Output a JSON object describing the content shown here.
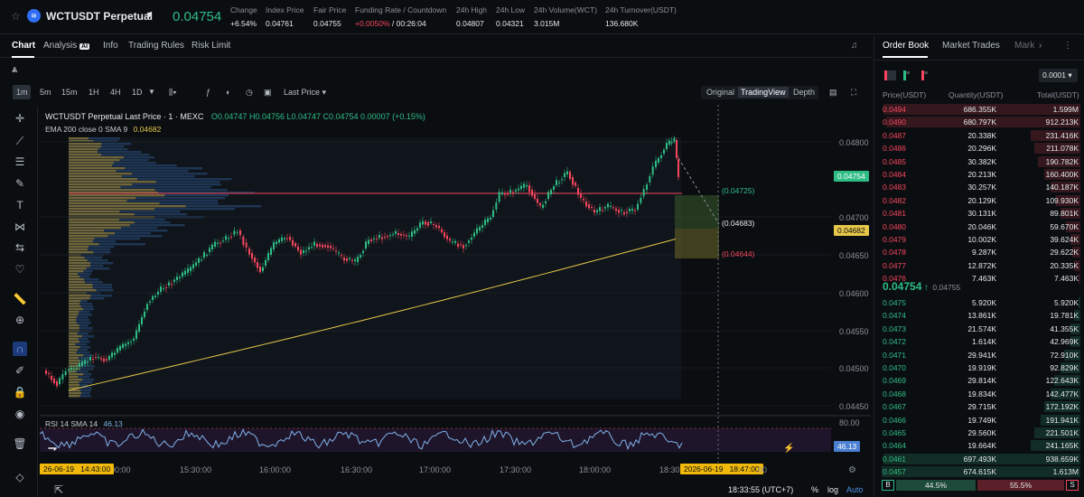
{
  "header": {
    "symbol": "WCTUSDT Perpetual",
    "price": "0.04754",
    "stats": [
      {
        "label": "Change",
        "value": "+6.54%",
        "color": "#2ebd85"
      },
      {
        "label": "Index Price",
        "value": "0.04761"
      },
      {
        "label": "Fair Price",
        "value": "0.04755"
      },
      {
        "label": "Funding Rate / Countdown",
        "value": "+0.0050%",
        "value2": "/ 00:26:04"
      },
      {
        "label": "24h High",
        "value": "0.04807"
      },
      {
        "label": "24h Low",
        "value": "0.04321"
      },
      {
        "label": "24h Volume(WCT)",
        "value": "3.015M"
      },
      {
        "label": "24h Turnover(USDT)",
        "value": "136.680K"
      }
    ]
  },
  "tabs": {
    "chart": "Chart",
    "analysis": "Analysis",
    "analysis_badge": "AI",
    "info": "Info",
    "rules": "Trading Rules",
    "risk": "Risk Limit"
  },
  "toolbar": {
    "tf": [
      "1m",
      "5m",
      "15m",
      "1H",
      "4H",
      "1D"
    ],
    "last_price": "Last Price",
    "views": [
      "Original",
      "TradingView",
      "Depth"
    ]
  },
  "legend": {
    "title": "WCTUSDT Perpetual Last Price · 1 · MEXC",
    "ohlc": "O0.04747 H0.04756 L0.04747 C0.04754 0.00007 (+0.15%)",
    "ema": "EMA 200 close 0 SMA 9",
    "ema_val": "0.04682",
    "rsi": "RSI 14 SMA 14",
    "rsi_val": "46.13"
  },
  "price_axis": [
    "0.04800",
    "0.04750",
    "0.04700",
    "0.04650",
    "0.04600",
    "0.04550",
    "0.04500",
    "0.04450"
  ],
  "rsi_axis": [
    "80.00"
  ],
  "last_price_tag": "0.04754",
  "ema_tag": "0.04682",
  "rsi_tag": "46.13",
  "position_labels": [
    "(0.04725)",
    "(0.04683)",
    "(0.04644)"
  ],
  "time_axis": [
    "15:30:00",
    "16:00:00",
    "16:30:00",
    "17:00:00",
    "17:30:00",
    "18:00:00",
    "18:30"
  ],
  "time_axis_first": "00:00",
  "time_left_tag": "26-06-19   14:43:00",
  "time_right_tag": "2026-06-19   18:47:00",
  "time_right_after": "00",
  "footer": {
    "clock": "18:33:55 (UTC+7)",
    "pct": "%",
    "log": "log",
    "auto": "Auto"
  },
  "orderbook": {
    "tabs": [
      "Order Book",
      "Market Trades",
      "Mark"
    ],
    "precision": "0.0001",
    "headers": [
      "Price(USDT)",
      "Quantity(USDT)",
      "Total(USDT)"
    ],
    "asks": [
      [
        "0.0494",
        "686.355K",
        "1.599M",
        0.98
      ],
      [
        "0.0490",
        "680.797K",
        "912.213K",
        0.97
      ],
      [
        "0.0487",
        "20.338K",
        "231.416K",
        0.25
      ],
      [
        "0.0486",
        "20.296K",
        "211.078K",
        0.23
      ],
      [
        "0.0485",
        "30.382K",
        "190.782K",
        0.21
      ],
      [
        "0.0484",
        "20.213K",
        "160.400K",
        0.18
      ],
      [
        "0.0483",
        "30.257K",
        "140.187K",
        0.15
      ],
      [
        "0.0482",
        "20.129K",
        "109.930K",
        0.12
      ],
      [
        "0.0481",
        "30.131K",
        "89.801K",
        0.1
      ],
      [
        "0.0480",
        "20.046K",
        "59.670K",
        0.07
      ],
      [
        "0.0479",
        "10.002K",
        "39.624K",
        0.05
      ],
      [
        "0.0478",
        "9.287K",
        "29.622K",
        0.04
      ],
      [
        "0.0477",
        "12.872K",
        "20.335K",
        0.03
      ],
      [
        "0.0476",
        "7.463K",
        "7.463K",
        0.01
      ]
    ],
    "mid_price": "0.04754",
    "mid_arrow": "↑",
    "mid_mark": "0.04755",
    "bids": [
      [
        "0.0475",
        "5.920K",
        "5.920K",
        0.01
      ],
      [
        "0.0474",
        "13.861K",
        "19.781K",
        0.03
      ],
      [
        "0.0473",
        "21.574K",
        "41.355K",
        0.05
      ],
      [
        "0.0472",
        "1.614K",
        "42.969K",
        0.05
      ],
      [
        "0.0471",
        "29.941K",
        "72.910K",
        0.08
      ],
      [
        "0.0470",
        "19.919K",
        "92.829K",
        0.1
      ],
      [
        "0.0469",
        "29.814K",
        "122.643K",
        0.13
      ],
      [
        "0.0468",
        "19.834K",
        "142.477K",
        0.15
      ],
      [
        "0.0467",
        "29.715K",
        "172.192K",
        0.18
      ],
      [
        "0.0466",
        "19.749K",
        "191.941K",
        0.2
      ],
      [
        "0.0465",
        "29.560K",
        "221.501K",
        0.23
      ],
      [
        "0.0464",
        "19.664K",
        "241.165K",
        0.25
      ],
      [
        "0.0461",
        "697.493K",
        "938.659K",
        0.98
      ],
      [
        "0.0457",
        "674.615K",
        "1.613M",
        0.99
      ]
    ],
    "ratio": {
      "b": "B",
      "b_pct": "44.5%",
      "s": "S",
      "s_pct": "55.5%"
    }
  },
  "colors": {
    "up": "#2ebd85",
    "down": "#f6465d",
    "ema": "#e6c74a",
    "bg": "#0b0e11"
  }
}
